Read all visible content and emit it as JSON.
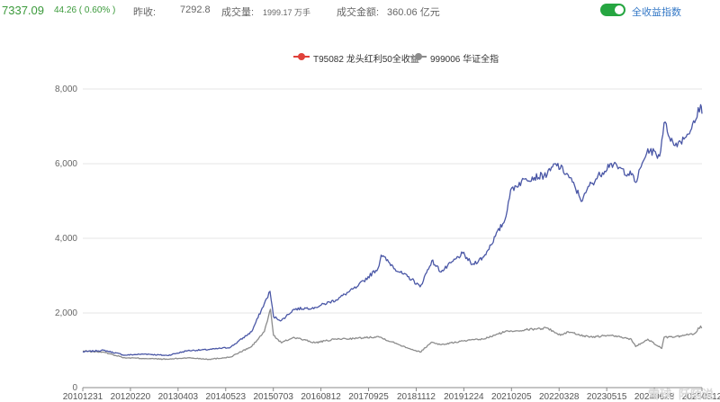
{
  "header": {
    "price": "7337.09",
    "change": "44.26 ( 0.60% )",
    "stats": [
      {
        "label": "昨收:",
        "value": "7292.8"
      },
      {
        "label": "成交量:",
        "value": "1999.17 万手"
      },
      {
        "label": "成交金额:",
        "value": "360.06 亿元"
      }
    ],
    "toggle_label": "全收益指数",
    "toggle_on": true,
    "accent_color": "#26a641"
  },
  "watermark": "雪球: 阡陌说",
  "chart_data": {
    "type": "line",
    "title": "",
    "xlabel": "",
    "ylabel": "",
    "ylim": [
      0,
      8000
    ],
    "yticks": [
      0,
      2000,
      4000,
      6000,
      8000
    ],
    "ytick_labels": [
      "0",
      "2,000",
      "4,000",
      "6,000",
      "8,000"
    ],
    "xtick_labels": [
      "20101231",
      "20120220",
      "20130403",
      "20140523",
      "20150703",
      "20160812",
      "20170925",
      "20181112",
      "20191224",
      "20210205",
      "20220328",
      "20230515",
      "20240628",
      "20250812"
    ],
    "grid": "horizontal",
    "legend_position": "top-center",
    "series": [
      {
        "name": "T95082 龙头红利50全收益",
        "line_color": "#4a57a6",
        "marker_color": "#e0413a",
        "x": [
          "2010-12-31",
          "2011-06-30",
          "2011-12-30",
          "2012-06-29",
          "2012-12-31",
          "2013-06-28",
          "2013-12-31",
          "2014-06-30",
          "2014-12-31",
          "2015-04-20",
          "2015-06-08",
          "2015-07-08",
          "2015-09-15",
          "2015-12-31",
          "2016-06-30",
          "2016-12-30",
          "2017-06-30",
          "2017-12-29",
          "2018-01-25",
          "2018-06-29",
          "2018-10-18",
          "2018-12-28",
          "2019-04-08",
          "2019-06-28",
          "2019-12-31",
          "2020-03-23",
          "2020-06-30",
          "2020-12-31",
          "2021-02-18",
          "2021-06-30",
          "2021-12-31",
          "2022-03-15",
          "2022-06-30",
          "2022-10-31",
          "2022-12-30",
          "2023-06-30",
          "2023-12-29",
          "2024-02-05",
          "2024-05-20",
          "2024-08-30",
          "2024-10-08",
          "2024-12-31",
          "2025-04-08",
          "2025-06-30",
          "2025-08-20",
          "2025-09-01"
        ],
        "y": [
          960,
          1000,
          870,
          900,
          860,
          990,
          1020,
          1080,
          1500,
          2250,
          2580,
          1900,
          1800,
          2100,
          2150,
          2350,
          2700,
          3200,
          3550,
          3100,
          2900,
          2700,
          3400,
          3100,
          3600,
          3300,
          3500,
          4500,
          5300,
          5600,
          5700,
          6000,
          5700,
          5000,
          5400,
          6000,
          5700,
          5500,
          6400,
          6200,
          7100,
          6500,
          6700,
          7100,
          7580,
          7340
        ]
      },
      {
        "name": "999006 华证全指",
        "line_color": "#8c8c8c",
        "marker_color": "#8c8c8c",
        "x": [
          "2010-12-31",
          "2011-06-30",
          "2011-12-30",
          "2012-06-29",
          "2012-12-31",
          "2013-06-28",
          "2013-12-31",
          "2014-06-30",
          "2014-12-31",
          "2015-04-20",
          "2015-06-12",
          "2015-07-08",
          "2015-09-15",
          "2015-12-31",
          "2016-06-30",
          "2016-12-30",
          "2017-06-30",
          "2017-12-29",
          "2018-06-29",
          "2018-12-28",
          "2019-04-08",
          "2019-06-28",
          "2019-12-31",
          "2020-06-30",
          "2020-12-31",
          "2021-06-30",
          "2021-12-31",
          "2022-04-26",
          "2022-06-30",
          "2022-12-30",
          "2023-06-30",
          "2023-12-29",
          "2024-02-05",
          "2024-05-20",
          "2024-09-18",
          "2024-10-08",
          "2024-12-31",
          "2025-06-30",
          "2025-08-20",
          "2025-09-01"
        ],
        "y": [
          980,
          950,
          800,
          780,
          760,
          800,
          760,
          820,
          1100,
          1500,
          2100,
          1400,
          1200,
          1350,
          1200,
          1300,
          1320,
          1370,
          1150,
          950,
          1220,
          1150,
          1250,
          1300,
          1500,
          1550,
          1600,
          1400,
          1500,
          1350,
          1400,
          1300,
          1100,
          1300,
          1050,
          1350,
          1350,
          1450,
          1650,
          1600
        ]
      }
    ]
  }
}
